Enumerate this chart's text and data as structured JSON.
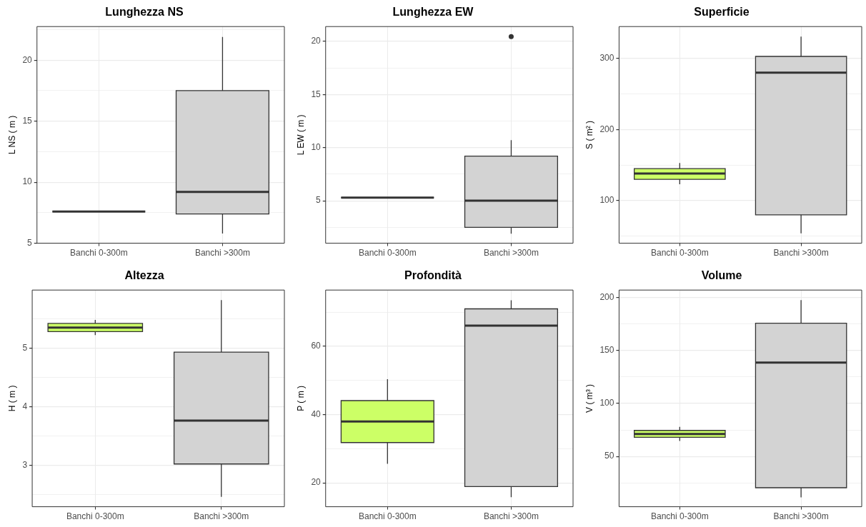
{
  "chart_data": [
    {
      "type": "box",
      "title": "Lunghezza NS",
      "ylabel": "L NS ( m )",
      "categories": [
        "Banchi 0-300m",
        "Banchi >300m"
      ],
      "colors": [
        "#333333",
        "#d3d3d3"
      ],
      "boxes": [
        {
          "low": 7.6,
          "q1": 7.6,
          "median": 7.6,
          "q3": 7.6,
          "high": 7.6
        },
        {
          "low": 5.8,
          "q1": 7.4,
          "median": 9.2,
          "q3": 17.5,
          "high": 21.9
        }
      ],
      "ylim": [
        5,
        22.75
      ],
      "yticks": [
        5,
        {
          "value": 7.5,
          "label": null
        },
        10,
        {
          "value": 12.5,
          "label": null
        },
        15,
        {
          "value": 17.5,
          "label": null
        },
        20,
        {
          "value": 22.5,
          "label": null
        }
      ],
      "grid": true
    },
    {
      "type": "box",
      "title": "Lunghezza EW",
      "ylabel": "L EW ( m )",
      "categories": [
        "Banchi 0-300m",
        "Banchi >300m"
      ],
      "colors": [
        "#333333",
        "#d3d3d3"
      ],
      "boxes": [
        {
          "low": 5.3,
          "q1": 5.3,
          "median": 5.3,
          "q3": 5.3,
          "high": 5.3
        },
        {
          "low": 1.9,
          "q1": 2.5,
          "median": 5.0,
          "q3": 9.2,
          "high": 10.7,
          "outliers": [
            20.45
          ]
        }
      ],
      "ylim": [
        1,
        21.4
      ],
      "yticks": [
        {
          "value": 2.5,
          "label": null
        },
        5,
        {
          "value": 7.5,
          "label": null
        },
        10,
        {
          "value": 12.5,
          "label": null
        },
        15,
        {
          "value": 17.5,
          "label": null
        },
        20
      ],
      "grid": true
    },
    {
      "type": "box",
      "title": "Superficie",
      "ylabel": "S ( m² )",
      "categories": [
        "Banchi 0-300m",
        "Banchi >300m"
      ],
      "colors": [
        "#ccff66",
        "#d3d3d3"
      ],
      "boxes": [
        {
          "low": 123,
          "q1": 130,
          "median": 138,
          "q3": 145,
          "high": 153
        },
        {
          "low": 54,
          "q1": 80,
          "median": 280,
          "q3": 303,
          "high": 331
        }
      ],
      "ylim": [
        40,
        345
      ],
      "yticks": [
        {
          "value": 50,
          "label": null
        },
        100,
        {
          "value": 150,
          "label": null
        },
        200,
        {
          "value": 250,
          "label": null
        },
        300
      ],
      "grid": true
    },
    {
      "type": "box",
      "title": "Altezza",
      "ylabel": "H ( m )",
      "categories": [
        "Banchi 0-300m",
        "Banchi >300m"
      ],
      "colors": [
        "#ccff66",
        "#d3d3d3"
      ],
      "boxes": [
        {
          "low": 5.22,
          "q1": 5.28,
          "median": 5.35,
          "q3": 5.42,
          "high": 5.48
        },
        {
          "low": 2.46,
          "q1": 3.02,
          "median": 3.76,
          "q3": 4.93,
          "high": 5.82
        }
      ],
      "ylim": [
        2.29,
        5.99
      ],
      "yticks": [
        {
          "value": 2.5,
          "label": null
        },
        3,
        {
          "value": 3.5,
          "label": null
        },
        4,
        {
          "value": 4.5,
          "label": null
        },
        5,
        {
          "value": 5.5,
          "label": null
        }
      ],
      "grid": true
    },
    {
      "type": "box",
      "title": "Profondità",
      "ylabel": "P ( m )",
      "categories": [
        "Banchi 0-300m",
        "Banchi >300m"
      ],
      "colors": [
        "#ccff66",
        "#d3d3d3"
      ],
      "boxes": [
        {
          "low": 25.6,
          "q1": 31.8,
          "median": 38.0,
          "q3": 44.1,
          "high": 50.4
        },
        {
          "low": 15.8,
          "q1": 18.9,
          "median": 66.1,
          "q3": 71.0,
          "high": 73.5
        }
      ],
      "ylim": [
        13,
        76.5
      ],
      "yticks": [
        20,
        {
          "value": 30,
          "label": null
        },
        40,
        {
          "value": 50,
          "label": null
        },
        60,
        {
          "value": 70,
          "label": null
        }
      ],
      "grid": true
    },
    {
      "type": "box",
      "title": "Volume",
      "ylabel": "V ( m³ )",
      "categories": [
        "Banchi 0-300m",
        "Banchi >300m"
      ],
      "colors": [
        "#ccff66",
        "#d3d3d3"
      ],
      "boxes": [
        {
          "low": 64.6,
          "q1": 68,
          "median": 71.2,
          "q3": 74.5,
          "high": 77.9
        },
        {
          "low": 11.5,
          "q1": 20.5,
          "median": 138.4,
          "q3": 175.6,
          "high": 197.3
        }
      ],
      "ylim": [
        2.6,
        206.8
      ],
      "yticks": [
        {
          "value": 25,
          "label": null
        },
        50,
        {
          "value": 75,
          "label": null
        },
        100,
        {
          "value": 125,
          "label": null
        },
        150,
        {
          "value": 175,
          "label": null
        },
        200
      ],
      "grid": true
    }
  ]
}
